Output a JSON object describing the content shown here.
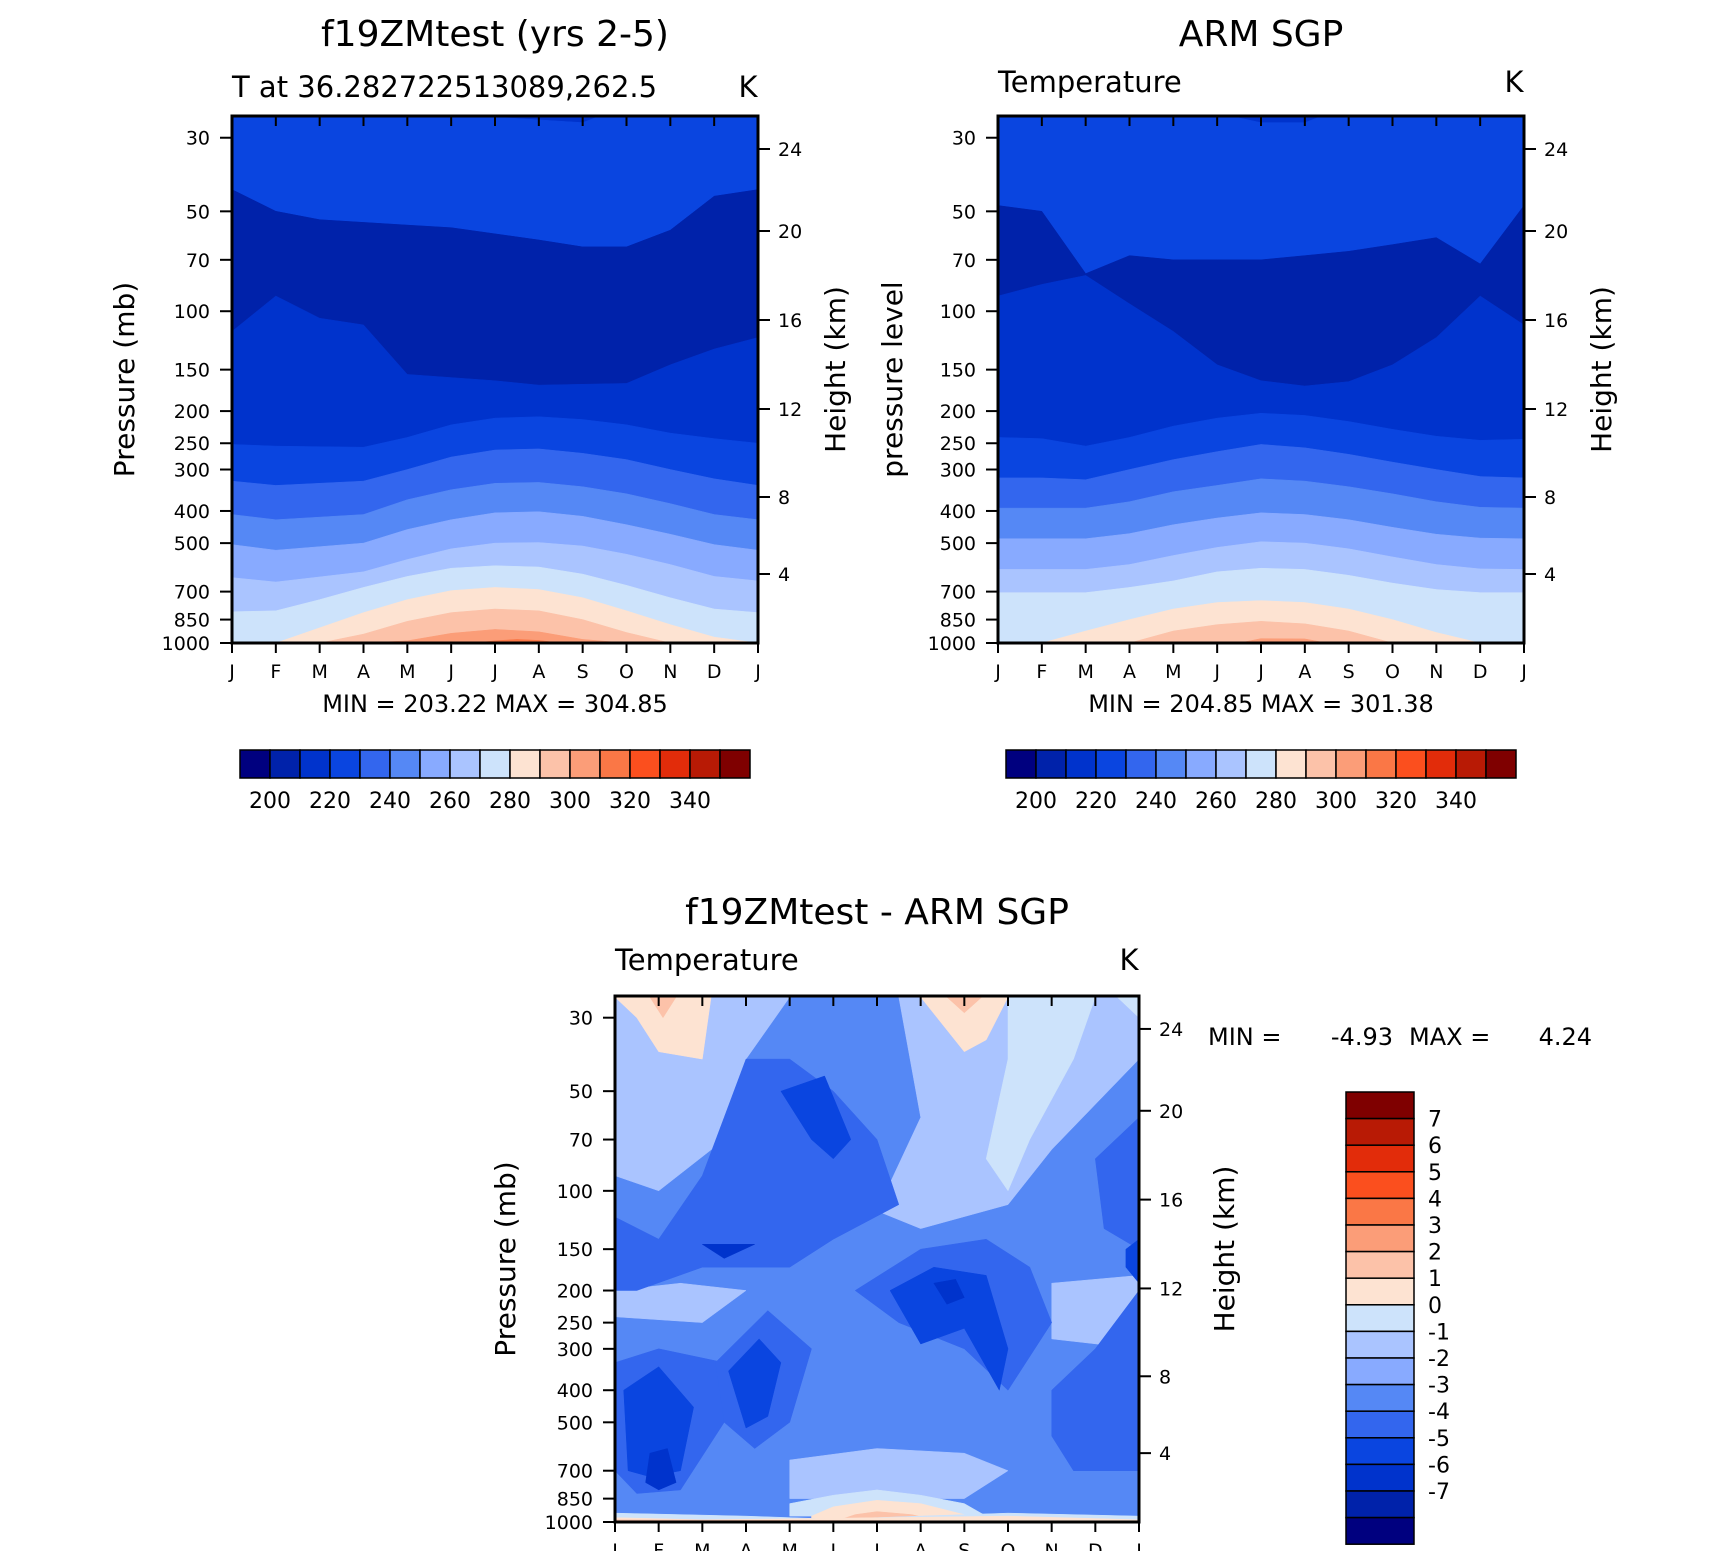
{
  "chart_data": [
    {
      "type": "contour",
      "title": "f19ZMtest (yrs 2-5)",
      "subtitle": "T at 36.282722513089,262.5",
      "units": "K",
      "ylabel": "Pressure (mb)",
      "ylabel_right": "Height (km)",
      "x_ticks": [
        "J",
        "F",
        "M",
        "A",
        "M",
        "J",
        "J",
        "A",
        "S",
        "O",
        "N",
        "D",
        "J"
      ],
      "y_ticks": [
        30,
        50,
        70,
        100,
        150,
        200,
        250,
        300,
        400,
        500,
        700,
        850,
        1000
      ],
      "height_ticks": [
        24,
        20,
        16,
        12,
        8,
        4
      ],
      "ylim": [
        1000,
        30
      ],
      "min_max_text": "MIN =  203.22 MAX  =  304.85",
      "colorbar": {
        "colors": [
          "#00007f",
          "#0022aa",
          "#0033cc",
          "#0a45e0",
          "#3366ee",
          "#5588f5",
          "#88aaff",
          "#aac4ff",
          "#cde3fb",
          "#fde3d2",
          "#fcc2a9",
          "#fb9d78",
          "#fa7746",
          "#fb4f1e",
          "#e22c0a",
          "#b81a05",
          "#7f0000"
        ],
        "labels": [
          "200",
          "220",
          "240",
          "260",
          "280",
          "300",
          "320",
          "340"
        ],
        "label_positions": [
          1,
          3,
          5,
          7,
          9,
          11,
          13,
          15
        ]
      }
    },
    {
      "type": "contour",
      "title": "ARM SGP",
      "subtitle": "Temperature",
      "units": "K",
      "ylabel": "pressure level",
      "ylabel_right": "Height (km)",
      "x_ticks": [
        "J",
        "F",
        "M",
        "A",
        "M",
        "J",
        "J",
        "A",
        "S",
        "O",
        "N",
        "D",
        "J"
      ],
      "y_ticks": [
        30,
        50,
        70,
        100,
        150,
        200,
        250,
        300,
        400,
        500,
        700,
        850,
        1000
      ],
      "height_ticks": [
        24,
        20,
        16,
        12,
        8,
        4
      ],
      "ylim": [
        1000,
        30
      ],
      "min_max_text": "MIN =  204.85 MAX  =  301.38",
      "colorbar": {
        "colors": [
          "#00007f",
          "#0022aa",
          "#0033cc",
          "#0a45e0",
          "#3366ee",
          "#5588f5",
          "#88aaff",
          "#aac4ff",
          "#cde3fb",
          "#fde3d2",
          "#fcc2a9",
          "#fb9d78",
          "#fa7746",
          "#fb4f1e",
          "#e22c0a",
          "#b81a05",
          "#7f0000"
        ],
        "labels": [
          "200",
          "220",
          "240",
          "260",
          "280",
          "300",
          "320",
          "340"
        ],
        "label_positions": [
          1,
          3,
          5,
          7,
          9,
          11,
          13,
          15
        ]
      }
    },
    {
      "type": "contour",
      "title": "f19ZMtest - ARM SGP",
      "subtitle": "Temperature",
      "units": "K",
      "ylabel": "Pressure (mb)",
      "ylabel_right": "Height (km)",
      "x_ticks": [
        "J",
        "F",
        "M",
        "A",
        "M",
        "J",
        "J",
        "A",
        "S",
        "O",
        "N",
        "D",
        "J"
      ],
      "y_ticks": [
        30,
        50,
        70,
        100,
        150,
        200,
        250,
        300,
        400,
        500,
        700,
        850,
        1000
      ],
      "height_ticks": [
        24,
        20,
        16,
        12,
        8,
        4
      ],
      "ylim": [
        1000,
        30
      ],
      "min_label": "MIN =",
      "min_value": "-4.93",
      "max_label": "MAX =",
      "max_value": "4.24",
      "colorbar": {
        "colors": [
          "#7f0000",
          "#b81a05",
          "#e22c0a",
          "#fb4f1e",
          "#fa7746",
          "#fb9d78",
          "#fcc2a9",
          "#fde3d2",
          "#cde3fb",
          "#aac4ff",
          "#88aaff",
          "#5588f5",
          "#3366ee",
          "#0a45e0",
          "#0033cc",
          "#0022aa",
          "#00007f"
        ],
        "labels": [
          "7",
          "6",
          "5",
          "4",
          "3",
          "2",
          "1",
          "0",
          "-1",
          "-2",
          "-3",
          "-4",
          "-5",
          "-6",
          "-7"
        ]
      }
    }
  ]
}
